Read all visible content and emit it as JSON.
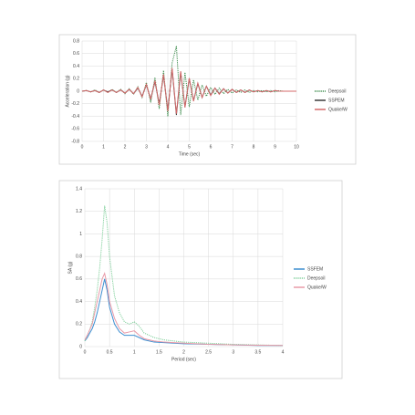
{
  "chart_data": [
    {
      "type": "line",
      "x_label": "Time (sec)",
      "y_label": "Acceleration (g)",
      "x": [
        0,
        0.2,
        0.4,
        0.6,
        0.8,
        1,
        1.2,
        1.4,
        1.6,
        1.8,
        2,
        2.2,
        2.4,
        2.6,
        2.8,
        3,
        3.2,
        3.4,
        3.6,
        3.8,
        4,
        4.2,
        4.4,
        4.6,
        4.8,
        5,
        5.2,
        5.4,
        5.6,
        5.8,
        6,
        6.2,
        6.4,
        6.6,
        6.8,
        7,
        7.2,
        7.4,
        7.6,
        7.8,
        8,
        8.2,
        8.4,
        8.6,
        8.8,
        9,
        9.2,
        9.4,
        9.6,
        9.8,
        10
      ],
      "xlim": [
        0,
        10
      ],
      "xticks": [
        0,
        1,
        2,
        3,
        4,
        5,
        6,
        7,
        8,
        9,
        10
      ],
      "ylim": [
        -0.8,
        0.8
      ],
      "yticks": [
        -0.8,
        -0.6,
        -0.4,
        -0.2,
        0,
        0.2,
        0.4,
        0.6,
        0.8
      ],
      "grid": true,
      "legend": "right",
      "series": [
        {
          "name": "Deepsoil",
          "color": "#3a8a4a",
          "dash": "dotted",
          "values": [
            0,
            0.01,
            -0.01,
            0.02,
            -0.02,
            0.02,
            -0.02,
            0.03,
            -0.02,
            0.03,
            -0.04,
            0.04,
            -0.05,
            0.07,
            -0.1,
            0.14,
            -0.18,
            0.22,
            -0.28,
            0.33,
            -0.4,
            0.45,
            0.72,
            -0.38,
            0.3,
            -0.25,
            0.18,
            -0.14,
            0.1,
            -0.08,
            0.06,
            -0.05,
            0.05,
            -0.04,
            0.03,
            -0.03,
            0.02,
            -0.02,
            0.02,
            -0.02,
            0.01,
            -0.01,
            0.01,
            -0.01,
            0.01,
            -0.01,
            0.01,
            0,
            0,
            0,
            0
          ]
        },
        {
          "name": "SSPEM",
          "color": "#3a3a3a",
          "dash": "solid",
          "values": [
            0,
            0.01,
            -0.01,
            0.01,
            -0.02,
            0.02,
            -0.01,
            0.02,
            -0.02,
            0.02,
            -0.03,
            0.03,
            -0.04,
            0.05,
            -0.08,
            0.1,
            -0.12,
            0.15,
            -0.2,
            0.25,
            -0.3,
            0.35,
            -0.38,
            0.3,
            -0.25,
            0.2,
            -0.15,
            0.12,
            -0.1,
            0.08,
            -0.06,
            0.05,
            -0.04,
            0.04,
            -0.03,
            0.03,
            -0.02,
            0.02,
            -0.02,
            0.02,
            -0.01,
            0.01,
            -0.01,
            0.01,
            -0.01,
            0.01,
            0,
            0,
            0,
            0,
            0
          ]
        },
        {
          "name": "Quake/W",
          "color": "#d46a6a",
          "dash": "solid",
          "values": [
            0,
            0.01,
            -0.01,
            0.01,
            -0.02,
            0.02,
            -0.02,
            0.02,
            -0.02,
            0.02,
            -0.03,
            0.03,
            -0.04,
            0.06,
            -0.09,
            0.11,
            -0.13,
            0.17,
            -0.22,
            0.27,
            -0.32,
            0.37,
            -0.36,
            0.32,
            -0.26,
            0.21,
            -0.16,
            0.13,
            -0.1,
            0.08,
            -0.07,
            0.05,
            -0.05,
            0.04,
            -0.03,
            0.03,
            -0.02,
            0.02,
            -0.02,
            0.02,
            -0.01,
            0.01,
            -0.01,
            0.01,
            -0.01,
            0.01,
            0,
            0,
            0,
            0,
            0
          ]
        }
      ]
    },
    {
      "type": "line",
      "x_label": "Period (sec)",
      "y_label": "SA (g)",
      "x": [
        0,
        0.05,
        0.1,
        0.15,
        0.2,
        0.25,
        0.3,
        0.35,
        0.4,
        0.45,
        0.5,
        0.6,
        0.7,
        0.8,
        0.9,
        1,
        1.1,
        1.2,
        1.4,
        1.6,
        1.8,
        2,
        2.5,
        3,
        3.5,
        4
      ],
      "xlim": [
        0,
        4
      ],
      "xticks": [
        0,
        0.5,
        1,
        1.5,
        2,
        2.5,
        3,
        3.5,
        4
      ],
      "ylim": [
        0,
        1.4
      ],
      "yticks": [
        0,
        0.2,
        0.4,
        0.6,
        0.8,
        1,
        1.2,
        1.4
      ],
      "grid": true,
      "legend": "right",
      "series": [
        {
          "name": "SSFEM",
          "color": "#3d8fd1",
          "dash": "solid",
          "values": [
            0.05,
            0.08,
            0.12,
            0.16,
            0.22,
            0.3,
            0.4,
            0.5,
            0.6,
            0.5,
            0.35,
            0.2,
            0.13,
            0.1,
            0.1,
            0.1,
            0.08,
            0.06,
            0.04,
            0.035,
            0.03,
            0.025,
            0.02,
            0.015,
            0.01,
            0.01
          ]
        },
        {
          "name": "Deepsoil",
          "color": "#7fcf9a",
          "dash": "dotted",
          "values": [
            0.05,
            0.1,
            0.15,
            0.22,
            0.35,
            0.5,
            0.7,
            0.95,
            1.25,
            1.1,
            0.8,
            0.45,
            0.3,
            0.22,
            0.2,
            0.22,
            0.18,
            0.12,
            0.08,
            0.06,
            0.05,
            0.04,
            0.03,
            0.02,
            0.015,
            0.01
          ]
        },
        {
          "name": "Quake/W",
          "color": "#e89aa8",
          "dash": "solid",
          "values": [
            0.06,
            0.1,
            0.15,
            0.2,
            0.3,
            0.4,
            0.5,
            0.6,
            0.65,
            0.55,
            0.4,
            0.25,
            0.16,
            0.12,
            0.13,
            0.14,
            0.1,
            0.07,
            0.05,
            0.04,
            0.035,
            0.03,
            0.02,
            0.015,
            0.012,
            0.01
          ]
        }
      ]
    }
  ]
}
